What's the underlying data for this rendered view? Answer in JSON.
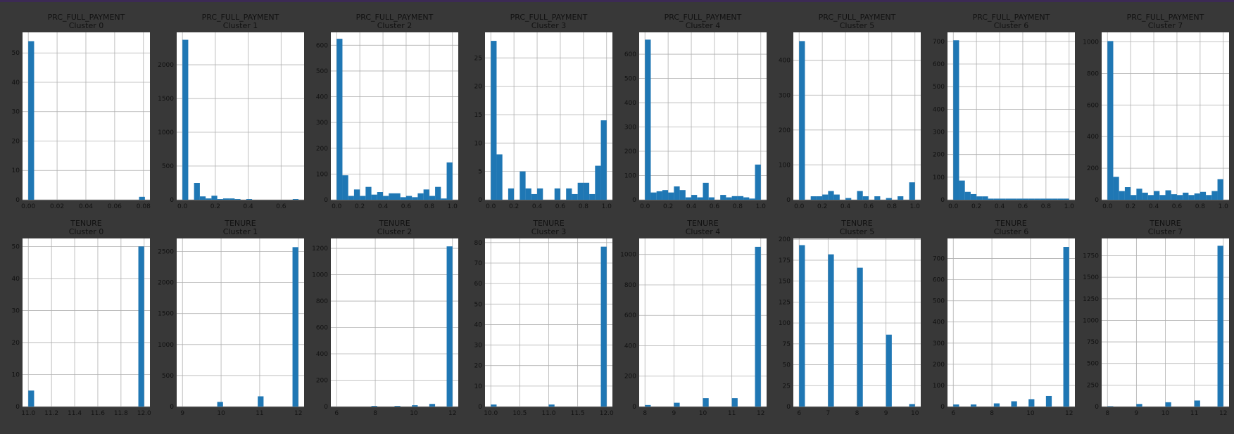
{
  "chart_data": [
    {
      "type": "bar",
      "title": "PRC_FULL_PAYMENT",
      "subtitle": "Cluster 0",
      "xlim": [
        -0.004,
        0.0845
      ],
      "ylim": [
        0,
        57
      ],
      "xticks": [
        0.0,
        0.02,
        0.04,
        0.06,
        0.08
      ],
      "xtick_labels": [
        "0.00",
        "0.02",
        "0.04",
        "0.06",
        "0.08"
      ],
      "yticks": [
        0,
        10,
        20,
        30,
        40,
        50
      ],
      "ytick_labels": [
        "0",
        "10",
        "20",
        "30",
        "40",
        "50"
      ],
      "bin_start": 0.0,
      "bin_width": 0.00405,
      "values": [
        54,
        0,
        0,
        0,
        0,
        0,
        0,
        0,
        0,
        0,
        0,
        0,
        0,
        0,
        0,
        0,
        0,
        0,
        0,
        1
      ]
    },
    {
      "type": "bar",
      "title": "PRC_FULL_PAYMENT",
      "subtitle": "Cluster 1",
      "xlim": [
        -0.035,
        0.74
      ],
      "ylim": [
        0,
        2480
      ],
      "xticks": [
        0.0,
        0.2,
        0.4,
        0.6
      ],
      "xtick_labels": [
        "0.0",
        "0.2",
        "0.4",
        "0.6"
      ],
      "yticks": [
        0,
        500,
        1000,
        1500,
        2000
      ],
      "ytick_labels": [
        "0",
        "500",
        "1000",
        "1500",
        "2000"
      ],
      "bin_start": 0.0,
      "bin_width": 0.0353,
      "values": [
        2370,
        0,
        250,
        50,
        20,
        60,
        10,
        20,
        20,
        10,
        0,
        10,
        0,
        0,
        0,
        0,
        0,
        0,
        0,
        10
      ]
    },
    {
      "type": "bar",
      "title": "PRC_FULL_PAYMENT",
      "subtitle": "Cluster 2",
      "xlim": [
        -0.05,
        1.05
      ],
      "ylim": [
        0,
        650
      ],
      "xticks": [
        0.0,
        0.2,
        0.4,
        0.6,
        0.8,
        1.0
      ],
      "xtick_labels": [
        "0.0",
        "0.2",
        "0.4",
        "0.6",
        "0.8",
        "1.0"
      ],
      "yticks": [
        0,
        100,
        200,
        300,
        400,
        500,
        600
      ],
      "ytick_labels": [
        "0",
        "100",
        "200",
        "300",
        "400",
        "500",
        "600"
      ],
      "bin_start": 0.0,
      "bin_width": 0.05,
      "values": [
        625,
        95,
        15,
        40,
        15,
        50,
        20,
        30,
        15,
        25,
        25,
        10,
        15,
        10,
        25,
        40,
        15,
        50,
        5,
        145
      ]
    },
    {
      "type": "bar",
      "title": "PRC_FULL_PAYMENT",
      "subtitle": "Cluster 3",
      "xlim": [
        -0.05,
        1.05
      ],
      "ylim": [
        0,
        29.5
      ],
      "xticks": [
        0.0,
        0.2,
        0.4,
        0.6,
        0.8,
        1.0
      ],
      "xtick_labels": [
        "0.0",
        "0.2",
        "0.4",
        "0.6",
        "0.8",
        "1.0"
      ],
      "yticks": [
        0,
        5,
        10,
        15,
        20,
        25
      ],
      "ytick_labels": [
        "0",
        "5",
        "10",
        "15",
        "20",
        "25"
      ],
      "bin_start": 0.0,
      "bin_width": 0.05,
      "values": [
        28,
        8,
        0,
        2,
        0,
        5,
        2,
        1,
        2,
        0,
        0,
        2,
        0,
        2,
        1,
        3,
        3,
        1,
        6,
        14
      ]
    },
    {
      "type": "bar",
      "title": "PRC_FULL_PAYMENT",
      "subtitle": "Cluster 4",
      "xlim": [
        -0.05,
        1.05
      ],
      "ylim": [
        0,
        690
      ],
      "xticks": [
        0.0,
        0.2,
        0.4,
        0.6,
        0.8,
        1.0
      ],
      "xtick_labels": [
        "0.0",
        "0.2",
        "0.4",
        "0.6",
        "0.8",
        "1.0"
      ],
      "yticks": [
        0,
        100,
        200,
        300,
        400,
        500,
        600
      ],
      "ytick_labels": [
        "0",
        "100",
        "200",
        "300",
        "400",
        "500",
        "600"
      ],
      "bin_start": 0.0,
      "bin_width": 0.05,
      "values": [
        660,
        30,
        35,
        40,
        30,
        55,
        40,
        10,
        20,
        10,
        70,
        10,
        0,
        20,
        10,
        15,
        15,
        10,
        5,
        145
      ]
    },
    {
      "type": "bar",
      "title": "PRC_FULL_PAYMENT",
      "subtitle": "Cluster 5",
      "xlim": [
        -0.05,
        1.05
      ],
      "ylim": [
        0,
        480
      ],
      "xticks": [
        0.0,
        0.2,
        0.4,
        0.6,
        0.8,
        1.0
      ],
      "xtick_labels": [
        "0.0",
        "0.2",
        "0.4",
        "0.6",
        "0.8",
        "1.0"
      ],
      "yticks": [
        0,
        100,
        200,
        300,
        400
      ],
      "ytick_labels": [
        "0",
        "100",
        "200",
        "300",
        "400"
      ],
      "bin_start": 0.0,
      "bin_width": 0.05,
      "values": [
        455,
        0,
        10,
        10,
        15,
        25,
        15,
        0,
        5,
        0,
        25,
        10,
        0,
        10,
        0,
        5,
        0,
        10,
        0,
        50
      ]
    },
    {
      "type": "bar",
      "title": "PRC_FULL_PAYMENT",
      "subtitle": "Cluster 6",
      "xlim": [
        -0.05,
        1.05
      ],
      "ylim": [
        0,
        740
      ],
      "xticks": [
        0.0,
        0.2,
        0.4,
        0.6,
        0.8,
        1.0
      ],
      "xtick_labels": [
        "0.0",
        "0.2",
        "0.4",
        "0.6",
        "0.8",
        "1.0"
      ],
      "yticks": [
        0,
        100,
        200,
        300,
        400,
        500,
        600,
        700
      ],
      "ytick_labels": [
        "0",
        "100",
        "200",
        "300",
        "400",
        "500",
        "600",
        "700"
      ],
      "bin_start": 0.0,
      "bin_width": 0.05,
      "values": [
        705,
        85,
        35,
        25,
        15,
        15,
        5,
        5,
        5,
        5,
        5,
        5,
        5,
        5,
        5,
        5,
        5,
        5,
        5,
        5
      ]
    },
    {
      "type": "bar",
      "title": "PRC_FULL_PAYMENT",
      "subtitle": "Cluster 7",
      "xlim": [
        -0.05,
        1.05
      ],
      "ylim": [
        0,
        1060
      ],
      "xticks": [
        0.0,
        0.2,
        0.4,
        0.6,
        0.8,
        1.0
      ],
      "xtick_labels": [
        "0.0",
        "0.2",
        "0.4",
        "0.6",
        "0.8",
        "1.0"
      ],
      "yticks": [
        0,
        200,
        400,
        600,
        800,
        1000
      ],
      "ytick_labels": [
        "0",
        "200",
        "400",
        "600",
        "800",
        "1000"
      ],
      "bin_start": 0.0,
      "bin_width": 0.05,
      "values": [
        1005,
        145,
        55,
        80,
        30,
        70,
        45,
        30,
        55,
        30,
        60,
        35,
        30,
        45,
        30,
        40,
        50,
        30,
        55,
        130
      ]
    },
    {
      "type": "bar",
      "title": "TENURE",
      "subtitle": "Cluster 0",
      "xlim": [
        10.95,
        12.05
      ],
      "ylim": [
        0,
        52.5
      ],
      "xticks": [
        11.0,
        11.2,
        11.4,
        11.6,
        11.8,
        12.0
      ],
      "xtick_labels": [
        "11.0",
        "11.2",
        "11.4",
        "11.6",
        "11.8",
        "12.0"
      ],
      "yticks": [
        0,
        10,
        20,
        30,
        40,
        50
      ],
      "ytick_labels": [
        "0",
        "10",
        "20",
        "30",
        "40",
        "50"
      ],
      "bin_start": 11.0,
      "bin_width": 0.05,
      "values": [
        5,
        0,
        0,
        0,
        0,
        0,
        0,
        0,
        0,
        0,
        0,
        0,
        0,
        0,
        0,
        0,
        0,
        0,
        0,
        50
      ]
    },
    {
      "type": "bar",
      "title": "TENURE",
      "subtitle": "Cluster 1",
      "xlim": [
        8.85,
        12.15
      ],
      "ylim": [
        0,
        2710
      ],
      "xticks": [
        9,
        10,
        11,
        12
      ],
      "xtick_labels": [
        "9",
        "10",
        "11",
        "12"
      ],
      "yticks": [
        0,
        500,
        1000,
        1500,
        2000,
        2500
      ],
      "ytick_labels": [
        "0",
        "500",
        "1000",
        "1500",
        "2000",
        "2500"
      ],
      "bin_start": 9.0,
      "bin_width": 0.15,
      "values": [
        0,
        0,
        0,
        0,
        0,
        0,
        75,
        0,
        0,
        0,
        0,
        0,
        0,
        165,
        0,
        0,
        0,
        0,
        0,
        2570
      ]
    },
    {
      "type": "bar",
      "title": "TENURE",
      "subtitle": "Cluster 2",
      "xlim": [
        5.7,
        12.3
      ],
      "ylim": [
        0,
        1275
      ],
      "xticks": [
        6,
        8,
        10,
        12
      ],
      "xtick_labels": [
        "6",
        "8",
        "10",
        "12"
      ],
      "yticks": [
        0,
        200,
        400,
        600,
        800,
        1000,
        1200
      ],
      "ytick_labels": [
        "0",
        "200",
        "400",
        "600",
        "800",
        "1000",
        "1200"
      ],
      "bin_start": 6.0,
      "bin_width": 0.3,
      "values": [
        0,
        0,
        0,
        0,
        0,
        0,
        5,
        0,
        0,
        0,
        5,
        0,
        0,
        10,
        0,
        0,
        20,
        0,
        0,
        1215
      ]
    },
    {
      "type": "bar",
      "title": "TENURE",
      "subtitle": "Cluster 3",
      "xlim": [
        9.9,
        12.1
      ],
      "ylim": [
        0,
        82
      ],
      "xticks": [
        10.0,
        10.5,
        11.0,
        11.5,
        12.0
      ],
      "xtick_labels": [
        "10.0",
        "10.5",
        "11.0",
        "11.5",
        "12.0"
      ],
      "yticks": [
        0,
        10,
        20,
        30,
        40,
        50,
        60,
        70,
        80
      ],
      "ytick_labels": [
        "0",
        "10",
        "20",
        "30",
        "40",
        "50",
        "60",
        "70",
        "80"
      ],
      "bin_start": 10.0,
      "bin_width": 0.1,
      "values": [
        1,
        0,
        0,
        0,
        0,
        0,
        0,
        0,
        0,
        0,
        1,
        0,
        0,
        0,
        0,
        0,
        0,
        0,
        0,
        78
      ]
    },
    {
      "type": "bar",
      "title": "TENURE",
      "subtitle": "Cluster 4",
      "xlim": [
        7.8,
        12.2
      ],
      "ylim": [
        0,
        1105
      ],
      "xticks": [
        8,
        9,
        10,
        11,
        12
      ],
      "xtick_labels": [
        "8",
        "9",
        "10",
        "11",
        "12"
      ],
      "yticks": [
        0,
        200,
        400,
        600,
        800,
        1000
      ],
      "ytick_labels": [
        "0",
        "200",
        "400",
        "600",
        "800",
        "1000"
      ],
      "bin_start": 8.0,
      "bin_width": 0.2,
      "values": [
        10,
        0,
        0,
        0,
        0,
        25,
        0,
        0,
        0,
        0,
        55,
        0,
        0,
        0,
        0,
        55,
        0,
        0,
        0,
        1050
      ]
    },
    {
      "type": "bar",
      "title": "TENURE",
      "subtitle": "Cluster 5",
      "xlim": [
        5.8,
        10.2
      ],
      "ylim": [
        0,
        201
      ],
      "xticks": [
        6,
        7,
        8,
        9,
        10
      ],
      "xtick_labels": [
        "6",
        "7",
        "8",
        "9",
        "10"
      ],
      "yticks": [
        0,
        25,
        50,
        75,
        100,
        125,
        150,
        175,
        200
      ],
      "ytick_labels": [
        "0",
        "25",
        "50",
        "75",
        "100",
        "125",
        "150",
        "175",
        "200"
      ],
      "bin_start": 6.0,
      "bin_width": 0.2,
      "values": [
        193,
        0,
        0,
        0,
        0,
        182,
        0,
        0,
        0,
        0,
        166,
        0,
        0,
        0,
        0,
        86,
        0,
        0,
        0,
        3
      ]
    },
    {
      "type": "bar",
      "title": "TENURE",
      "subtitle": "Cluster 6",
      "xlim": [
        5.7,
        12.3
      ],
      "ylim": [
        0,
        795
      ],
      "xticks": [
        6,
        8,
        10,
        12
      ],
      "xtick_labels": [
        "6",
        "8",
        "10",
        "12"
      ],
      "yticks": [
        0,
        100,
        200,
        300,
        400,
        500,
        600,
        700
      ],
      "ytick_labels": [
        "0",
        "100",
        "200",
        "300",
        "400",
        "500",
        "600",
        "700"
      ],
      "bin_start": 6.0,
      "bin_width": 0.3,
      "values": [
        10,
        0,
        0,
        10,
        0,
        0,
        0,
        15,
        0,
        0,
        25,
        0,
        0,
        35,
        0,
        0,
        50,
        0,
        0,
        755
      ]
    },
    {
      "type": "bar",
      "title": "TENURE",
      "subtitle": "Cluster 7",
      "xlim": [
        7.8,
        12.2
      ],
      "ylim": [
        0,
        1950
      ],
      "xticks": [
        8,
        9,
        10,
        11,
        12
      ],
      "xtick_labels": [
        "8",
        "9",
        "10",
        "11",
        "12"
      ],
      "yticks": [
        0,
        250,
        500,
        750,
        1000,
        1250,
        1500,
        1750
      ],
      "ytick_labels": [
        "0",
        "250",
        "500",
        "750",
        "1000",
        "1250",
        "1500",
        "1750"
      ],
      "bin_start": 8.0,
      "bin_width": 0.2,
      "values": [
        5,
        0,
        0,
        0,
        0,
        30,
        0,
        0,
        0,
        0,
        50,
        0,
        0,
        0,
        0,
        70,
        0,
        0,
        0,
        1865
      ]
    }
  ]
}
